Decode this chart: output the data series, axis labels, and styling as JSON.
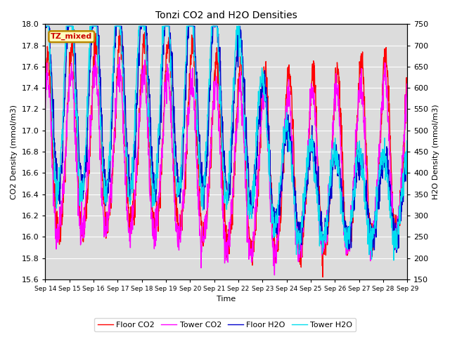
{
  "title": "Tonzi CO2 and H2O Densities",
  "xlabel": "Time",
  "ylabel_left": "CO2 Density (mmol/m3)",
  "ylabel_right": "H2O Density (mmol/m3)",
  "co2_ylim": [
    15.6,
    18.0
  ],
  "h2o_ylim": [
    150,
    750
  ],
  "xtick_labels": [
    "Sep 14",
    "Sep 15",
    "Sep 16",
    "Sep 17",
    "Sep 18",
    "Sep 19",
    "Sep 20",
    "Sep 21",
    "Sep 22",
    "Sep 23",
    "Sep 24",
    "Sep 25",
    "Sep 26",
    "Sep 27",
    "Sep 28",
    "Sep 29"
  ],
  "colors": {
    "floor_co2": "#FF0000",
    "tower_co2": "#FF00FF",
    "floor_h2o": "#0000CC",
    "tower_h2o": "#00DDEE"
  },
  "legend_labels": [
    "Floor CO2",
    "Tower CO2",
    "Floor H2O",
    "Tower H2O"
  ],
  "tz_label": "TZ_mixed",
  "tz_label_color": "#CC0000",
  "tz_bg_color": "#FFFFC0",
  "tz_border_color": "#BB8800",
  "bg_color": "#DCDCDC",
  "grid_color": "#FFFFFF",
  "linewidth": 1.0,
  "seed": 7
}
